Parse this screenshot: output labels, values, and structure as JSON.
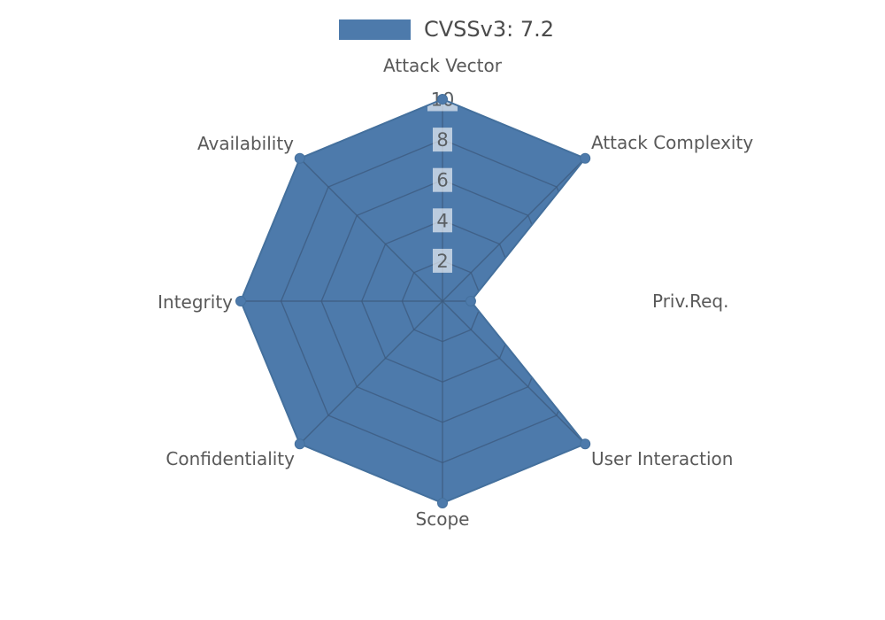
{
  "legend": {
    "label": "CVSSv3: 7.2"
  },
  "chart_data": {
    "type": "radar",
    "title": "CVSSv3: 7.2",
    "axes": [
      "Attack Vector",
      "Attack Complexity",
      "Priv.Req.",
      "User Interaction",
      "Scope",
      "Confidentiality",
      "Integrity",
      "Availability"
    ],
    "series": [
      {
        "name": "CVSSv3: 7.2",
        "values": [
          10,
          10,
          1.4,
          10,
          10,
          10,
          10,
          10
        ]
      }
    ],
    "ring_ticks": [
      2,
      4,
      6,
      8,
      10
    ],
    "max": 10,
    "legend_position": "top-center",
    "grid": "on",
    "colors": {
      "fill": "#4d7aab",
      "outline": "#44709d",
      "grid_line": "#3c5a7d",
      "tick_box": "rgba(255,255,255,0.62)",
      "tick_text": "#5a5f63",
      "axis_label": "#595959",
      "legend_text": "#4b4b4b"
    }
  }
}
